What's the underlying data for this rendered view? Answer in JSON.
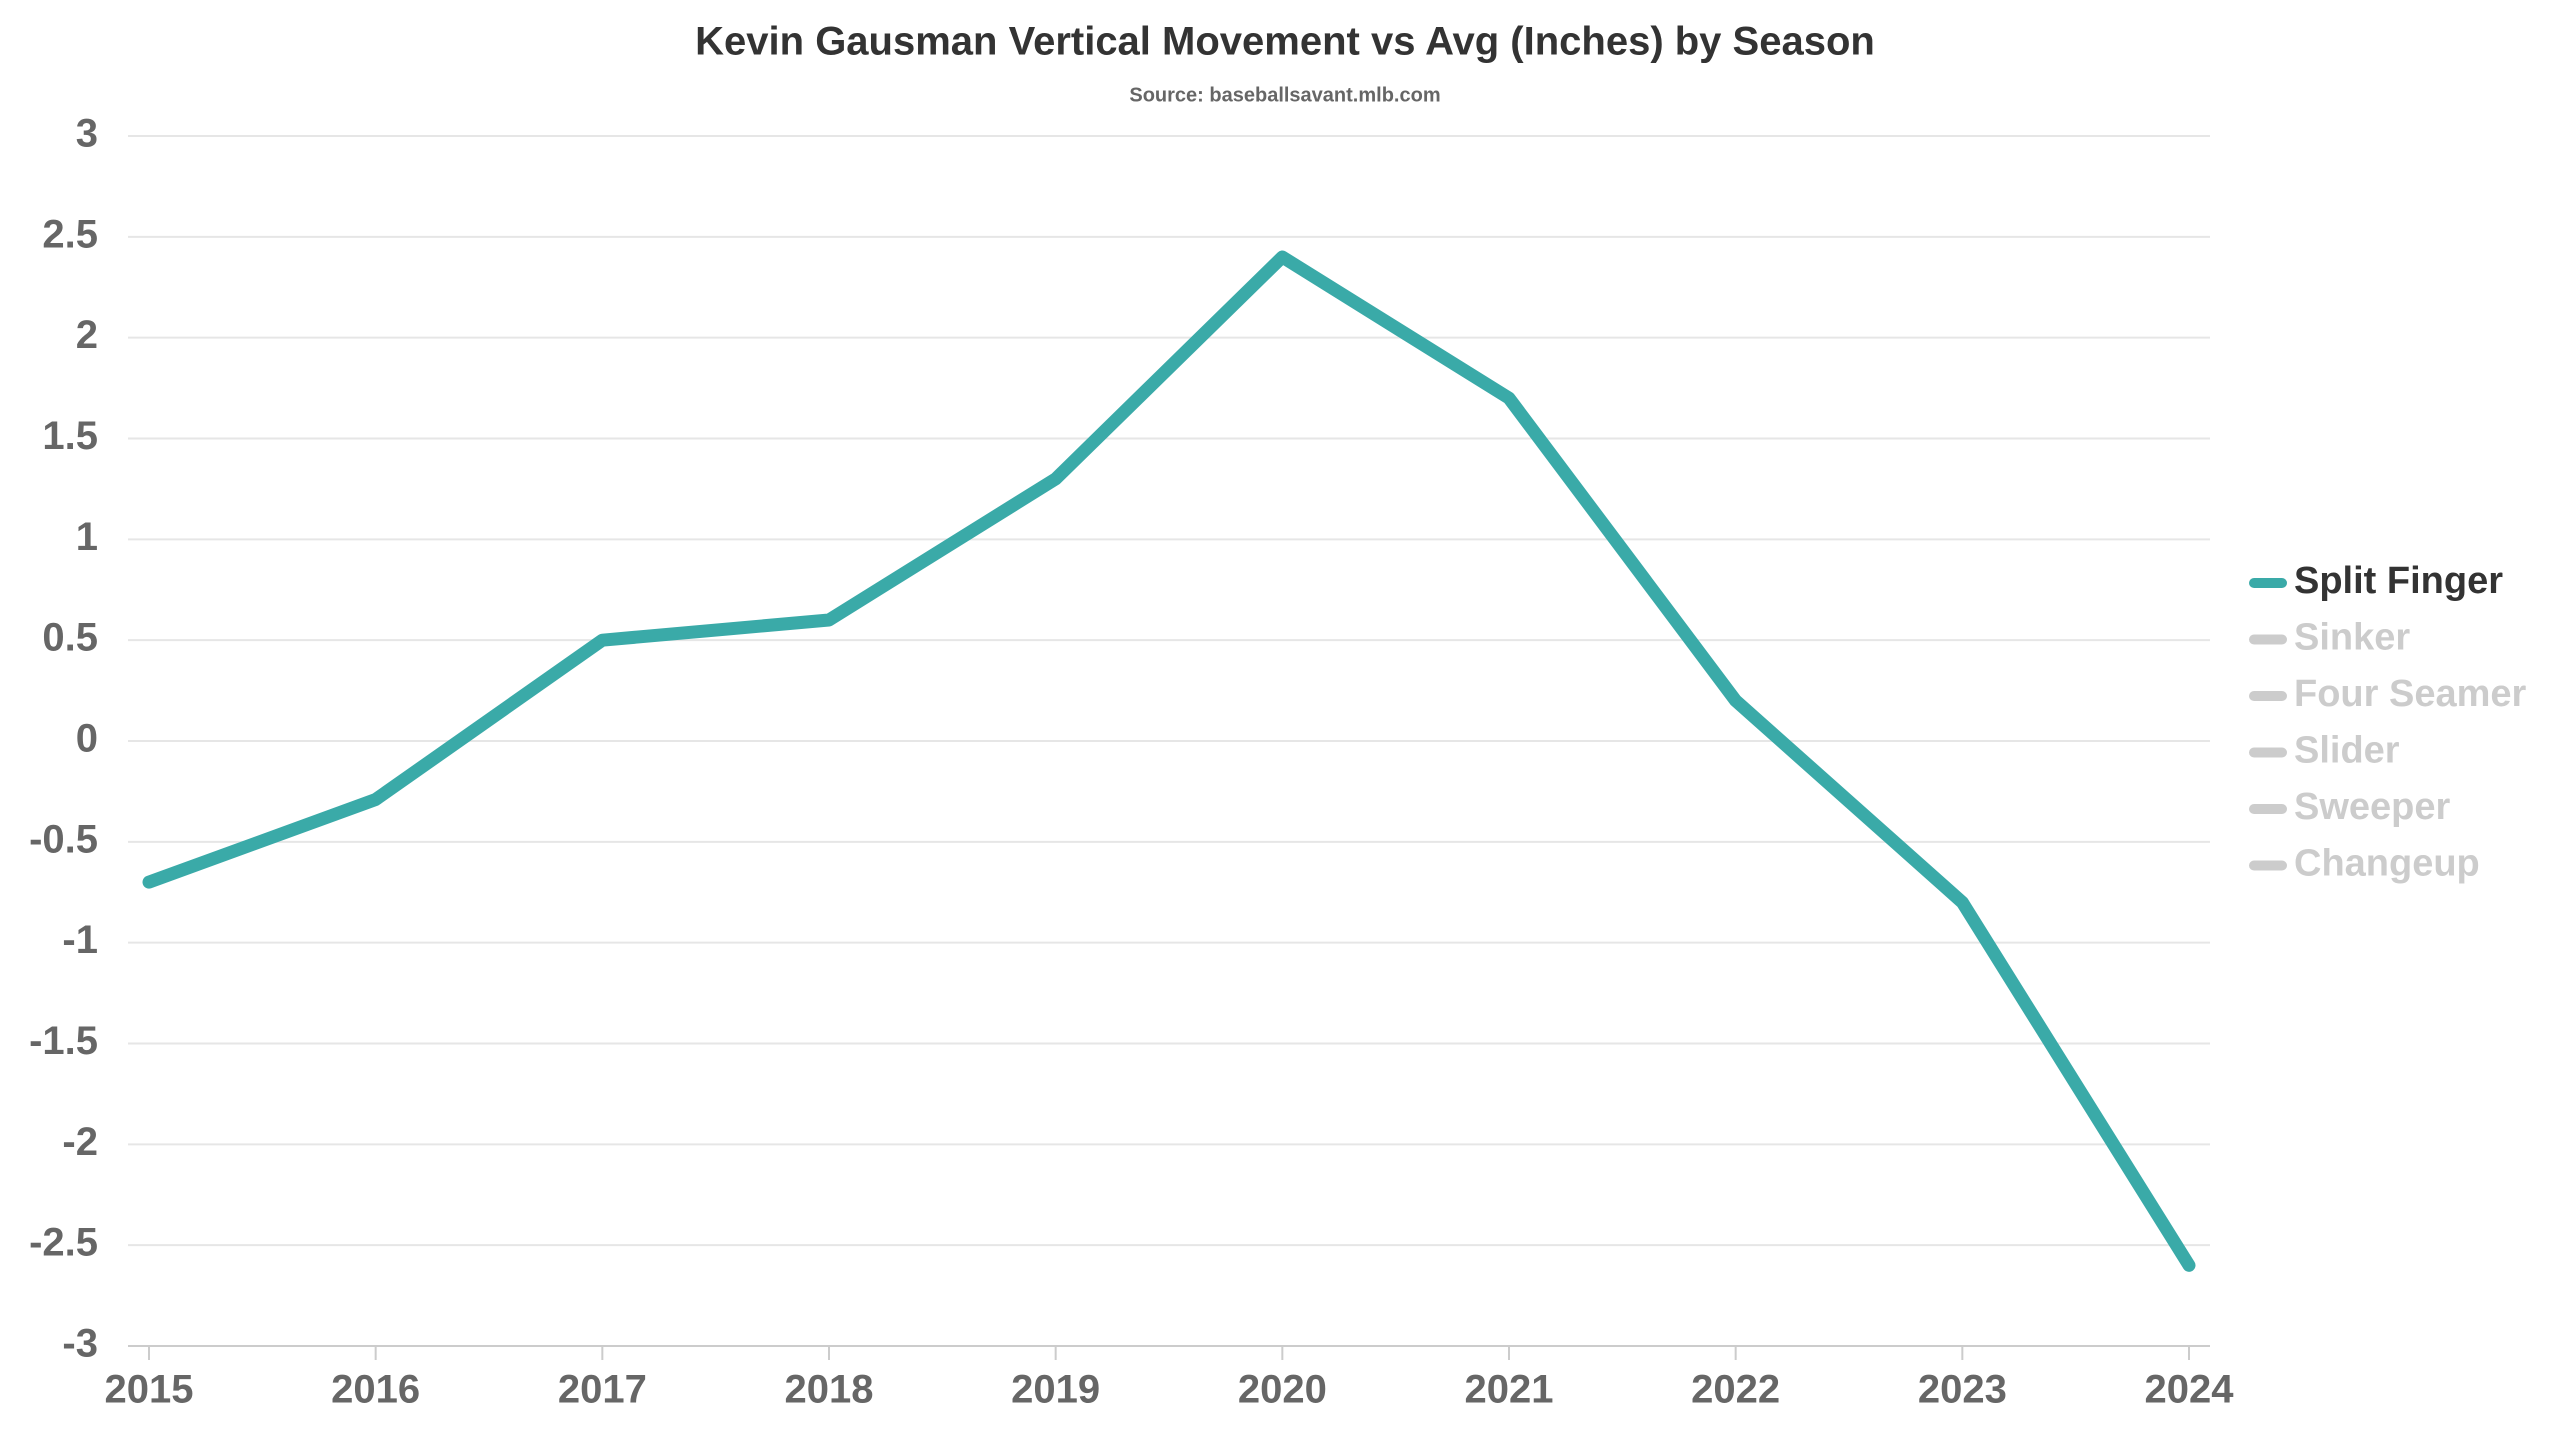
{
  "chart_data": {
    "type": "line",
    "title": "Kevin Gausman Vertical Movement vs Avg (Inches) by Season",
    "subtitle": "Source: baseballsavant.mlb.com",
    "categories": [
      "2015",
      "2016",
      "2017",
      "2018",
      "2019",
      "2020",
      "2021",
      "2022",
      "2023",
      "2024"
    ],
    "series": [
      {
        "name": "Split Finger",
        "color": "#3aaaa8",
        "visible": true,
        "values": [
          -0.7,
          -0.29,
          0.5,
          0.6,
          1.3,
          2.4,
          1.7,
          0.2,
          -0.8,
          -2.6
        ]
      },
      {
        "name": "Sinker",
        "color": "#cccccc",
        "visible": false
      },
      {
        "name": "Four Seamer",
        "color": "#cccccc",
        "visible": false
      },
      {
        "name": "Slider",
        "color": "#cccccc",
        "visible": false
      },
      {
        "name": "Sweeper",
        "color": "#cccccc",
        "visible": false
      },
      {
        "name": "Changeup",
        "color": "#cccccc",
        "visible": false
      }
    ],
    "ylim": [
      -3,
      3
    ],
    "yticks": [
      -3,
      -2.5,
      -2,
      -1.5,
      -1,
      -0.5,
      0,
      0.5,
      1,
      1.5,
      2,
      2.5,
      3
    ],
    "grid": true,
    "legend": "right"
  }
}
